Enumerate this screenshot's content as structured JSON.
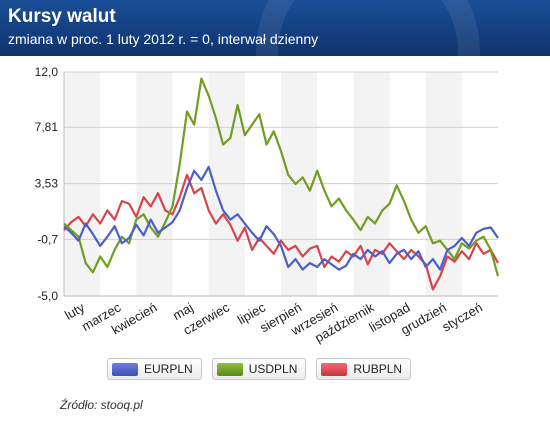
{
  "header": {
    "title": "Kursy walut",
    "subtitle": "zmiana w proc. 1 luty 2012 r. = 0, interwał dzienny"
  },
  "source": "Źródło: stooq.pl",
  "colors": {
    "EURPLN": "#4a5fc9",
    "USDPLN": "#6f9e22",
    "RUBPLN": "#d9434a",
    "grid": "#cfcfcf",
    "plot_bg_band": "#f3f3f3"
  },
  "chart_data": {
    "type": "line",
    "title": "Kursy walut",
    "subtitle": "zmiana w proc. 1 luty 2012 r. = 0, interwał dzienny",
    "ylim": [
      -5.0,
      12.0
    ],
    "yticks": [
      12.0,
      7.81,
      3.53,
      -0.7,
      -5.0
    ],
    "ytick_labels": [
      "12,0",
      "7,81",
      "3,53",
      "-0,7",
      "-5,0"
    ],
    "xlim": [
      0,
      12
    ],
    "x_month_labels": [
      "luty",
      "marzec",
      "kwiecień",
      "maj",
      "czerwiec",
      "lipiec",
      "sierpień",
      "wrzesień",
      "październik",
      "listopad",
      "grudzień",
      "styczeń"
    ],
    "grid": true,
    "legend_position": "bottom",
    "series": [
      {
        "name": "EURPLN",
        "x": [
          0,
          0.2,
          0.4,
          0.6,
          0.8,
          1.0,
          1.2,
          1.4,
          1.6,
          1.8,
          2.0,
          2.2,
          2.4,
          2.6,
          2.8,
          3.0,
          3.2,
          3.4,
          3.6,
          3.8,
          4.0,
          4.2,
          4.4,
          4.6,
          4.8,
          5.0,
          5.2,
          5.4,
          5.6,
          5.8,
          6.0,
          6.2,
          6.4,
          6.6,
          6.8,
          7.0,
          7.2,
          7.4,
          7.6,
          7.8,
          8.0,
          8.2,
          8.4,
          8.6,
          8.8,
          9.0,
          9.2,
          9.4,
          9.6,
          9.8,
          10.0,
          10.2,
          10.4,
          10.6,
          10.8,
          11.0,
          11.2,
          11.4,
          11.6,
          11.8,
          12.0
        ],
        "y": [
          0.3,
          -0.2,
          -0.8,
          0.5,
          -0.3,
          -1.2,
          -0.5,
          0.3,
          -1.0,
          -0.6,
          0.4,
          -0.4,
          0.8,
          -0.2,
          0.2,
          0.6,
          1.5,
          3.2,
          4.5,
          3.8,
          4.8,
          3.0,
          1.5,
          0.8,
          1.2,
          0.5,
          -0.2,
          -0.8,
          0.3,
          -0.3,
          -1.2,
          -2.8,
          -2.2,
          -3.0,
          -2.5,
          -2.8,
          -2.2,
          -2.6,
          -3.0,
          -2.7,
          -1.8,
          -2.2,
          -1.5,
          -2.0,
          -1.6,
          -2.5,
          -1.8,
          -1.5,
          -2.2,
          -1.6,
          -2.8,
          -2.2,
          -3.0,
          -1.5,
          -1.2,
          -0.6,
          -1.2,
          -0.2,
          0.1,
          0.2,
          -0.6
        ]
      },
      {
        "name": "USDPLN",
        "x": [
          0,
          0.2,
          0.4,
          0.6,
          0.8,
          1.0,
          1.2,
          1.4,
          1.6,
          1.8,
          2.0,
          2.2,
          2.4,
          2.6,
          2.8,
          3.0,
          3.2,
          3.4,
          3.6,
          3.8,
          4.0,
          4.2,
          4.4,
          4.6,
          4.8,
          5.0,
          5.2,
          5.4,
          5.6,
          5.8,
          6.0,
          6.2,
          6.4,
          6.6,
          6.8,
          7.0,
          7.2,
          7.4,
          7.6,
          7.8,
          8.0,
          8.2,
          8.4,
          8.6,
          8.8,
          9.0,
          9.2,
          9.4,
          9.6,
          9.8,
          10.0,
          10.2,
          10.4,
          10.6,
          10.8,
          11.0,
          11.2,
          11.4,
          11.6,
          11.8,
          12.0
        ],
        "y": [
          0.5,
          0.0,
          -0.5,
          -2.5,
          -3.2,
          -2.0,
          -2.8,
          -1.5,
          -0.5,
          -1.0,
          0.8,
          1.2,
          0.2,
          -0.5,
          0.6,
          1.8,
          5.0,
          9.0,
          8.0,
          11.5,
          10.2,
          8.5,
          6.5,
          7.0,
          9.5,
          7.2,
          8.0,
          8.8,
          6.5,
          7.5,
          6.0,
          4.2,
          3.5,
          4.0,
          3.0,
          4.5,
          3.0,
          1.8,
          2.4,
          1.5,
          0.8,
          0.0,
          1.0,
          0.5,
          1.5,
          2.0,
          3.4,
          2.2,
          0.8,
          -0.2,
          0.3,
          -1.0,
          -0.8,
          -1.5,
          -2.2,
          -1.0,
          -1.4,
          -0.8,
          -0.5,
          -1.5,
          -3.5
        ]
      },
      {
        "name": "RUBPLN",
        "x": [
          0,
          0.2,
          0.4,
          0.6,
          0.8,
          1.0,
          1.2,
          1.4,
          1.6,
          1.8,
          2.0,
          2.2,
          2.4,
          2.6,
          2.8,
          3.0,
          3.2,
          3.4,
          3.6,
          3.8,
          4.0,
          4.2,
          4.4,
          4.6,
          4.8,
          5.0,
          5.2,
          5.4,
          5.6,
          5.8,
          6.0,
          6.2,
          6.4,
          6.6,
          6.8,
          7.0,
          7.2,
          7.4,
          7.6,
          7.8,
          8.0,
          8.2,
          8.4,
          8.6,
          8.8,
          9.0,
          9.2,
          9.4,
          9.6,
          9.8,
          10.0,
          10.2,
          10.4,
          10.6,
          10.8,
          11.0,
          11.2,
          11.4,
          11.6,
          11.8,
          12.0
        ],
        "y": [
          0.0,
          0.6,
          1.0,
          0.3,
          1.2,
          0.5,
          1.5,
          0.8,
          2.2,
          2.0,
          1.0,
          2.5,
          1.8,
          2.8,
          1.5,
          1.2,
          2.5,
          4.2,
          2.8,
          3.2,
          1.5,
          0.5,
          1.2,
          0.4,
          -0.8,
          0.2,
          -1.5,
          -0.6,
          -1.2,
          -1.8,
          -0.8,
          -1.5,
          -1.2,
          -2.0,
          -1.4,
          -1.2,
          -2.8,
          -2.0,
          -2.4,
          -1.6,
          -2.0,
          -1.2,
          -2.6,
          -1.5,
          -1.8,
          -1.0,
          -1.6,
          -2.2,
          -1.5,
          -2.0,
          -2.6,
          -4.5,
          -3.5,
          -2.0,
          -2.4,
          -1.6,
          -2.2,
          -1.0,
          -1.8,
          -1.5,
          -2.5
        ]
      }
    ]
  }
}
